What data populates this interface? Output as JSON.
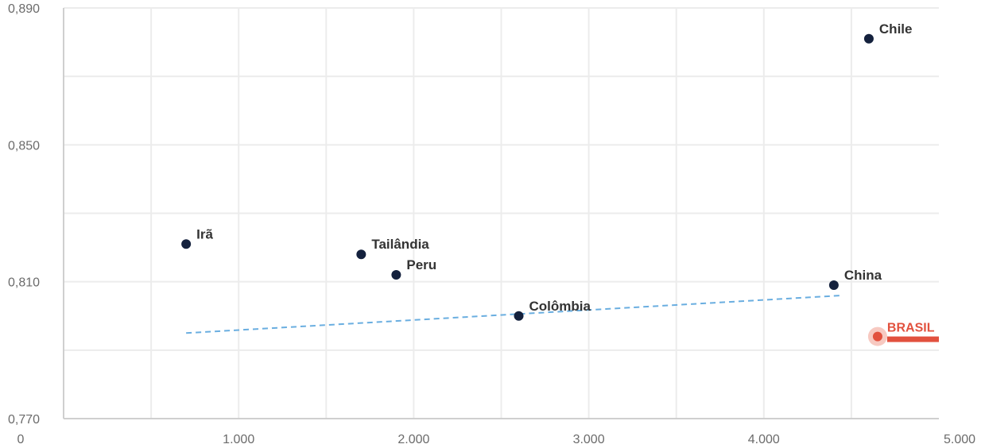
{
  "colors": {
    "point": "#14213d",
    "highlight": "#e2513e",
    "highlight_halo": "#f7c9c1",
    "trend": "#6aaee0",
    "grid": "#ececec",
    "axis": "#cfcfcf",
    "tick_text": "#6b6b6b",
    "label_text": "#333333"
  },
  "chart_data": {
    "type": "scatter",
    "xlim": [
      0,
      5000
    ],
    "ylim": [
      0.77,
      0.89
    ],
    "x_ticks": [
      {
        "value": 0,
        "label": "0"
      },
      {
        "value": 1000,
        "label": "1.000"
      },
      {
        "value": 2000,
        "label": "2.000"
      },
      {
        "value": 3000,
        "label": "3.000"
      },
      {
        "value": 4000,
        "label": "4.000"
      },
      {
        "value": 5000,
        "label": "5.000"
      }
    ],
    "y_ticks": [
      {
        "value": 0.77,
        "label": "0,770"
      },
      {
        "value": 0.81,
        "label": "0,810"
      },
      {
        "value": 0.85,
        "label": "0,850"
      },
      {
        "value": 0.89,
        "label": "0,890"
      }
    ],
    "grid": true,
    "points": [
      {
        "label": "Irã",
        "x": 700,
        "y": 0.821,
        "highlight": false
      },
      {
        "label": "Tailândia",
        "x": 1700,
        "y": 0.818,
        "highlight": false
      },
      {
        "label": "Peru",
        "x": 1900,
        "y": 0.812,
        "highlight": false
      },
      {
        "label": "Colômbia",
        "x": 2600,
        "y": 0.8,
        "highlight": false
      },
      {
        "label": "China",
        "x": 4400,
        "y": 0.809,
        "highlight": false
      },
      {
        "label": "Chile",
        "x": 4600,
        "y": 0.881,
        "highlight": false
      },
      {
        "label": "BRASIL",
        "x": 4650,
        "y": 0.794,
        "highlight": true
      }
    ],
    "trendline": {
      "x": [
        700,
        4450
      ],
      "y": [
        0.795,
        0.806
      ]
    }
  }
}
